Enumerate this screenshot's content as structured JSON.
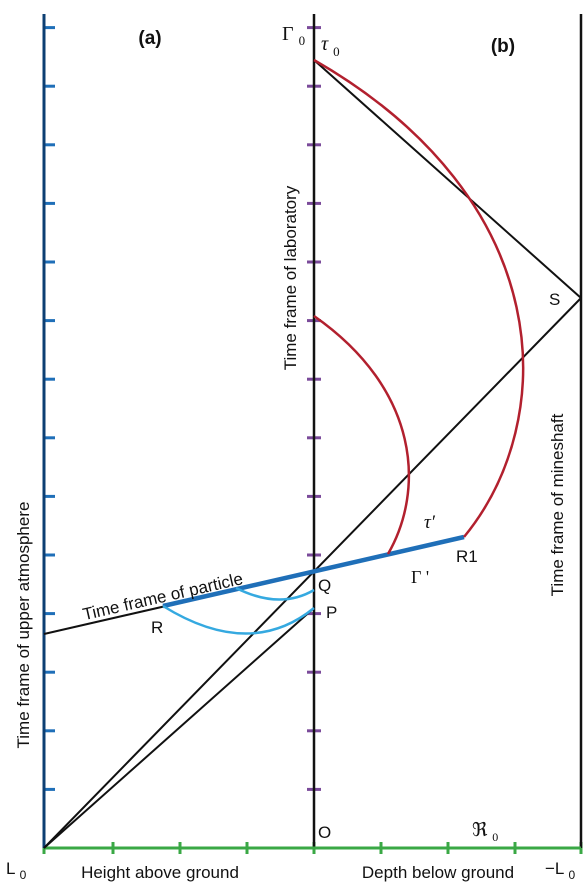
{
  "colors": {
    "axis_black": "#111111",
    "left_axis_blue": "#0d3f73",
    "ground_green": "#3aa845",
    "tick_blue": "#1f6fb8",
    "tick_purple": "#7a4a9a",
    "curve_red": "#b2202e",
    "particle_blue": "#1f6fb8",
    "arc_light_blue": "#35a9e0"
  },
  "labels": {
    "panel_a": "(a)",
    "panel_b": "(b)",
    "gamma0": "Γ",
    "gamma0_sub": "0",
    "tau0": "τ",
    "tau0_sub": "0",
    "tau_prime": "τ′",
    "gamma_prime": "Γ '",
    "S": "S",
    "R1": "R1",
    "Q": "Q",
    "P": "P",
    "R": "R",
    "O": "O",
    "R0": "ℜ",
    "R0_sub": "0",
    "L0": "L",
    "L0_sub": "0",
    "negL0": "−L",
    "negL0_sub": "0"
  },
  "axes": {
    "laboratory": "Time frame of laboratory",
    "mineshaft": "Time frame of mineshaft",
    "upper_atmosphere": "Time frame of upper atmosphere",
    "particle": "Time frame of particle",
    "height": "Height above ground",
    "depth": "Depth below ground"
  }
}
